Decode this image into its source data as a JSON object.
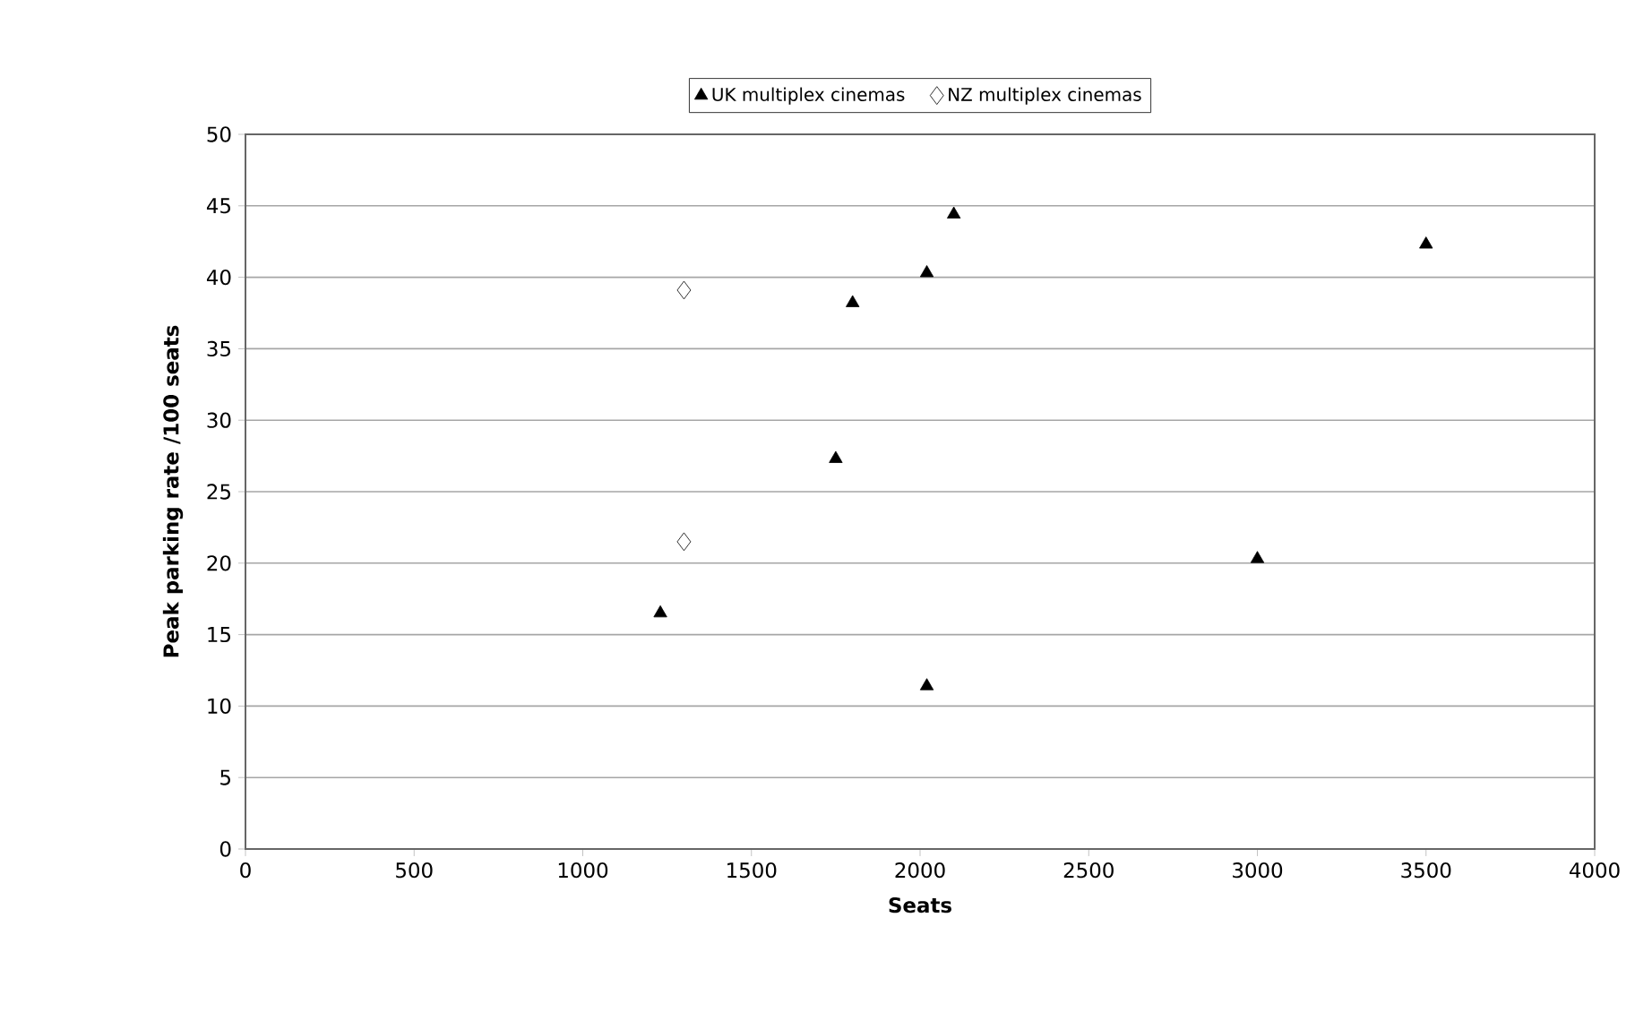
{
  "chart_data": {
    "type": "scatter",
    "xlabel": "Seats",
    "ylabel": "Peak parking rate /100 seats",
    "xlim": [
      0,
      4000
    ],
    "xticks": [
      0,
      500,
      1000,
      1500,
      2000,
      2500,
      3000,
      3500,
      4000
    ],
    "ylim": [
      0,
      50
    ],
    "yticks": [
      0,
      5,
      10,
      15,
      20,
      25,
      30,
      35,
      40,
      45,
      50
    ],
    "grid": "y",
    "legend": "top",
    "series": [
      {
        "name": "UK multiplex cinemas",
        "color": "#000000",
        "marker": "triangle",
        "x": [
          1230,
          1750,
          1800,
          2020,
          2020,
          2100,
          3000,
          3500
        ],
        "values": [
          16.5,
          27.3,
          38.2,
          40.3,
          11.4,
          44.4,
          20.3,
          42.3
        ]
      },
      {
        "name": "NZ multiplex cinemas",
        "color": "#000000",
        "marker": "diamond",
        "x": [
          1300,
          1300
        ],
        "values": [
          39.1,
          21.5
        ]
      }
    ]
  }
}
